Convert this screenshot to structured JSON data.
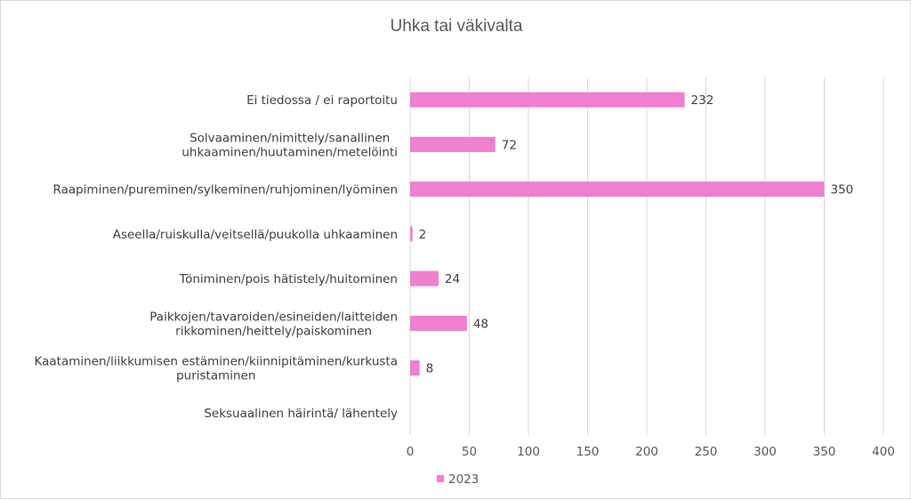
{
  "chart_data": {
    "type": "bar",
    "orientation": "horizontal",
    "title": "Uhka tai väkivalta",
    "categories": [
      "Ei tiedossa / ei raportoitu",
      "Solvaaminen/nimittely/sanallinen uhkaaminen/huutaminen/metelöinti",
      "Raapiminen/pureminen/sylkeminen/ruhjominen/lyöminen",
      "Aseella/ruiskulla/veitsellä/puukolla uhkaaminen",
      "Töniminen/pois hätistely/huitominen",
      "Paikkojen/tavaroiden/esineiden/laitteiden rikkominen/heittely/paiskominen",
      "Kaataminen/liikkumisen estäminen/kiinnipitäminen/kurkusta puristaminen",
      "Seksuaalinen häirintä/ lähentely"
    ],
    "category_lines": [
      [
        "Ei tiedossa / ei raportoitu"
      ],
      [
        "Solvaaminen/nimittely/sanallinen",
        "uhkaaminen/huutaminen/metelöinti"
      ],
      [
        "Raapiminen/pureminen/sylkeminen/ruhjominen/lyöminen"
      ],
      [
        "Aseella/ruiskulla/veitsellä/puukolla uhkaaminen"
      ],
      [
        "Töniminen/pois hätistely/huitominen"
      ],
      [
        "Paikkojen/tavaroiden/esineiden/laitteiden",
        "rikkominen/heittely/paiskominen"
      ],
      [
        "Kaataminen/liikkumisen estäminen/kiinnipitäminen/kurkusta",
        "puristaminen"
      ],
      [
        "Seksuaalinen häirintä/ lähentely"
      ]
    ],
    "series": [
      {
        "name": "2023",
        "values": [
          232,
          72,
          350,
          2,
          24,
          48,
          8,
          null
        ]
      }
    ],
    "data_labels": [
      "232",
      "72",
      "350",
      "2",
      "24",
      "48",
      "8",
      ""
    ],
    "xlim": [
      0,
      400
    ],
    "xticks": [
      0,
      50,
      100,
      150,
      200,
      250,
      300,
      350,
      400
    ],
    "xlabel": "",
    "ylabel": "",
    "grid": "vertical",
    "legend_position": "bottom",
    "colors": {
      "bar": "#f07fcf",
      "grid": "#d9d9d9",
      "text": "#404040"
    }
  }
}
